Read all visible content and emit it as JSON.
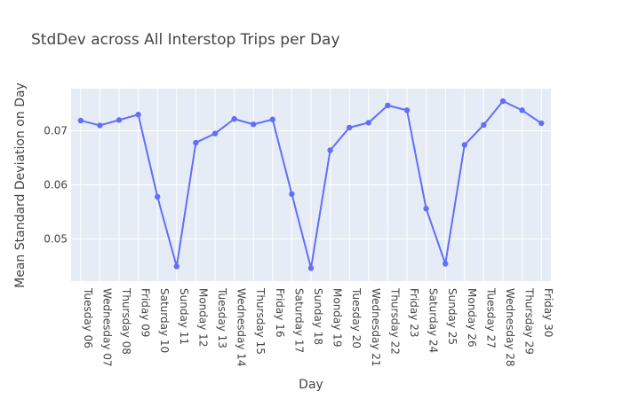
{
  "chart_data": {
    "type": "line",
    "title": "StdDev across All Interstop Trips per Day",
    "xlabel": "Day",
    "ylabel": "Mean Standard Deviation on Day",
    "categories": [
      "Tuesday 06",
      "Wednesday 07",
      "Thursday 08",
      "Friday 09",
      "Saturday 10",
      "Sunday 11",
      "Monday 12",
      "Tuesday 13",
      "Wednesday 14",
      "Thursday 15",
      "Friday 16",
      "Saturday 17",
      "Sunday 18",
      "Monday 19",
      "Tuesday 20",
      "Wednesday 21",
      "Thursday 22",
      "Friday 23",
      "Saturday 24",
      "Sunday 25",
      "Monday 26",
      "Tuesday 27",
      "Wednesday 28",
      "Thursday 29",
      "Friday 30"
    ],
    "series": [
      {
        "values": [
          0.0719,
          0.071,
          0.072,
          0.073,
          0.0578,
          0.0449,
          0.0678,
          0.0695,
          0.0722,
          0.0712,
          0.0721,
          0.0583,
          0.0446,
          0.0664,
          0.0706,
          0.0715,
          0.0747,
          0.0738,
          0.0556,
          0.0454,
          0.0674,
          0.0711,
          0.0755,
          0.0738,
          0.0714
        ],
        "color": "#636efa"
      }
    ],
    "ylim": [
      0.0422,
      0.0778
    ],
    "yticks": [
      0.05,
      0.06,
      0.07
    ],
    "ytick_labels": [
      "0.05",
      "0.06",
      "0.07"
    ],
    "grid": true,
    "legend": "none",
    "colors": {
      "plot_bg": "#e5ecf6",
      "grid": "#ffffff",
      "line": "#636efa",
      "text": "#444444"
    }
  }
}
